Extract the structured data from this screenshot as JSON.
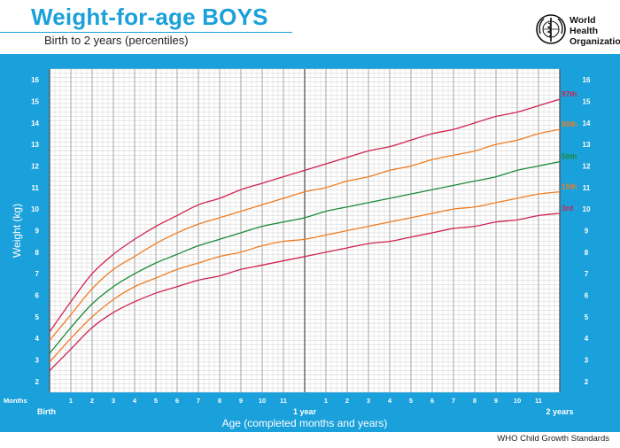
{
  "header": {
    "title": "Weight-for-age BOYS",
    "subtitle": "Birth to 2 years (percentiles)",
    "org_line1": "World Health",
    "org_line2": "Organization",
    "logo_icon": "who-emblem-icon"
  },
  "footer": {
    "text": "WHO Child Growth Standards"
  },
  "colors": {
    "panel": "#1aa0da",
    "grid": "#999999",
    "p97": "#d0234f",
    "p85": "#ef7d22",
    "p50": "#1c8a3a",
    "p15": "#ef7d22",
    "p3": "#d0234f"
  },
  "chart_data": {
    "type": "line",
    "title": "Weight-for-age BOYS",
    "subtitle": "Birth to 2 years (percentiles)",
    "xlabel": "Age (completed months and years)",
    "ylabel": "Weight (kg)",
    "xlim": [
      0,
      24
    ],
    "ylim": [
      1.5,
      16.5
    ],
    "yticks": [
      2,
      3,
      4,
      5,
      6,
      7,
      8,
      9,
      10,
      11,
      12,
      13,
      14,
      15,
      16
    ],
    "months_label": "Months",
    "month_ticks": [
      "1",
      "2",
      "3",
      "4",
      "5",
      "6",
      "7",
      "8",
      "9",
      "10",
      "11"
    ],
    "year_labels": [
      {
        "x": 0,
        "label": "Birth"
      },
      {
        "x": 12,
        "label": "1 year"
      },
      {
        "x": 24,
        "label": "2 years"
      }
    ],
    "grid": true,
    "x": [
      0,
      1,
      2,
      3,
      4,
      5,
      6,
      7,
      8,
      9,
      10,
      11,
      12,
      13,
      14,
      15,
      16,
      17,
      18,
      19,
      20,
      21,
      22,
      23,
      24
    ],
    "series": [
      {
        "name": "97th",
        "color": "#d0234f",
        "values": [
          4.3,
          5.7,
          7.0,
          7.9,
          8.6,
          9.2,
          9.7,
          10.2,
          10.5,
          10.9,
          11.2,
          11.5,
          11.8,
          12.1,
          12.4,
          12.7,
          12.9,
          13.2,
          13.5,
          13.7,
          14.0,
          14.3,
          14.5,
          14.8,
          15.1
        ]
      },
      {
        "name": "85th",
        "color": "#ef7d22",
        "values": [
          3.9,
          5.1,
          6.3,
          7.2,
          7.8,
          8.4,
          8.9,
          9.3,
          9.6,
          9.9,
          10.2,
          10.5,
          10.8,
          11.0,
          11.3,
          11.5,
          11.8,
          12.0,
          12.3,
          12.5,
          12.7,
          13.0,
          13.2,
          13.5,
          13.7
        ]
      },
      {
        "name": "50th",
        "color": "#1c8a3a",
        "values": [
          3.3,
          4.5,
          5.6,
          6.4,
          7.0,
          7.5,
          7.9,
          8.3,
          8.6,
          8.9,
          9.2,
          9.4,
          9.6,
          9.9,
          10.1,
          10.3,
          10.5,
          10.7,
          10.9,
          11.1,
          11.3,
          11.5,
          11.8,
          12.0,
          12.2
        ]
      },
      {
        "name": "15th",
        "color": "#ef7d22",
        "values": [
          2.9,
          4.0,
          5.0,
          5.8,
          6.4,
          6.8,
          7.2,
          7.5,
          7.8,
          8.0,
          8.3,
          8.5,
          8.6,
          8.8,
          9.0,
          9.2,
          9.4,
          9.6,
          9.8,
          10.0,
          10.1,
          10.3,
          10.5,
          10.7,
          10.8
        ]
      },
      {
        "name": "3rd",
        "color": "#d0234f",
        "values": [
          2.5,
          3.5,
          4.5,
          5.2,
          5.7,
          6.1,
          6.4,
          6.7,
          6.9,
          7.2,
          7.4,
          7.6,
          7.8,
          8.0,
          8.2,
          8.4,
          8.5,
          8.7,
          8.9,
          9.1,
          9.2,
          9.4,
          9.5,
          9.7,
          9.8
        ]
      }
    ]
  }
}
